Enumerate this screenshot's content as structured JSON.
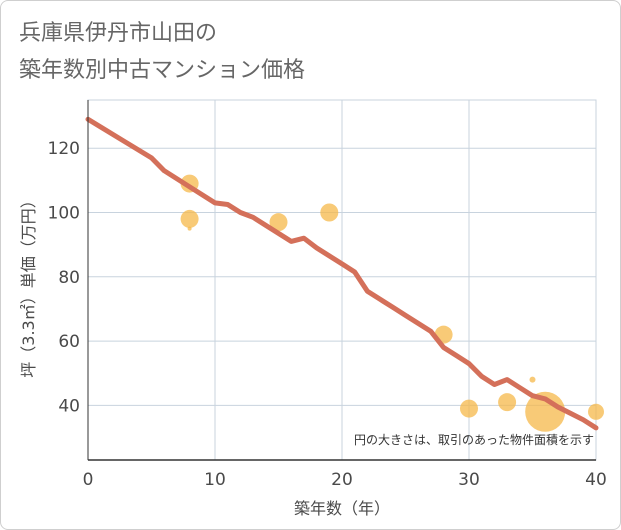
{
  "title_line1": "兵庫県伊丹市山田の",
  "title_line2": "築年数別中古マンション価格",
  "chart_data": {
    "type": "scatter",
    "xlabel": "築年数（年）",
    "ylabel": "坪（3.3㎡）単価（万円）",
    "xlim": [
      0,
      40
    ],
    "ylim": [
      23,
      135
    ],
    "x_ticks": [
      0,
      10,
      20,
      30,
      40
    ],
    "y_ticks": [
      40,
      60,
      80,
      100,
      120
    ],
    "grid": true,
    "note": "円の大きさは、取引のあった物件面積を示す",
    "points": [
      {
        "x": 8,
        "y": 109,
        "size": 9
      },
      {
        "x": 8,
        "y": 98,
        "size": 9
      },
      {
        "x": 8,
        "y": 95,
        "size": 2
      },
      {
        "x": 15,
        "y": 97,
        "size": 9
      },
      {
        "x": 19,
        "y": 100,
        "size": 9
      },
      {
        "x": 28,
        "y": 62,
        "size": 9
      },
      {
        "x": 30,
        "y": 39,
        "size": 9
      },
      {
        "x": 33,
        "y": 41,
        "size": 9
      },
      {
        "x": 35,
        "y": 48,
        "size": 3
      },
      {
        "x": 36,
        "y": 38,
        "size": 20
      },
      {
        "x": 40,
        "y": 38,
        "size": 8
      }
    ],
    "trend": {
      "x": [
        0,
        5,
        6,
        8,
        10,
        11,
        12,
        13,
        14,
        15,
        16,
        17,
        18,
        19,
        20,
        21,
        22,
        23,
        24,
        25,
        26,
        27,
        28,
        29,
        30,
        31,
        32,
        33,
        34,
        35,
        36,
        37,
        38,
        39,
        40
      ],
      "y": [
        129,
        117,
        113,
        108,
        103,
        102.5,
        100,
        98.5,
        96,
        93.5,
        91,
        92,
        89,
        86.5,
        84,
        81.5,
        75.5,
        73,
        70.5,
        68,
        65.5,
        63,
        58,
        55.5,
        53,
        49,
        46.5,
        48,
        45.5,
        43,
        42,
        39.5,
        37.5,
        35.5,
        33
      ]
    },
    "colors": {
      "points": "#f5b84a",
      "trend": "#d4705a",
      "grid": "#c8d3de"
    }
  }
}
